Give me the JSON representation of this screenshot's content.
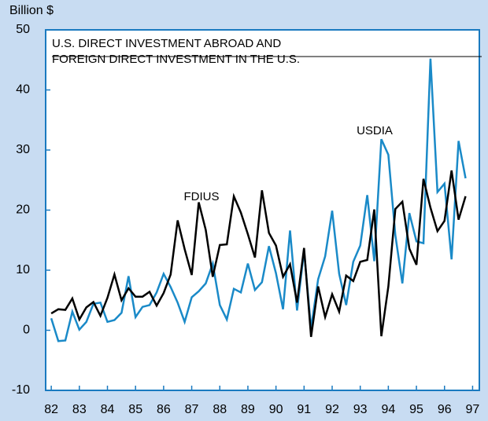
{
  "chart_data": {
    "type": "line",
    "title": [
      "U.S. DIRECT INVESTMENT ABROAD AND",
      "FOREIGN DIRECT INVESTMENT IN THE U.S."
    ],
    "ylabel": "Billion $",
    "x": [
      82,
      82.25,
      82.5,
      82.75,
      83,
      83.25,
      83.5,
      83.75,
      84,
      84.25,
      84.5,
      84.75,
      85,
      85.25,
      85.5,
      85.75,
      86,
      86.25,
      86.5,
      86.75,
      87,
      87.25,
      87.5,
      87.75,
      88,
      88.25,
      88.5,
      88.75,
      89,
      89.25,
      89.5,
      89.75,
      90,
      90.25,
      90.5,
      90.75,
      91,
      91.25,
      91.5,
      91.75,
      92,
      92.25,
      92.5,
      92.75,
      93,
      93.25,
      93.5,
      93.75,
      94,
      94.25,
      94.5,
      94.75,
      95,
      95.25,
      95.5,
      95.75,
      96,
      96.25,
      96.5,
      96.75
    ],
    "series": [
      {
        "name": "USDIA",
        "color": "#1a8ac8",
        "values": [
          2.0,
          -1.8,
          -1.7,
          3.1,
          0.1,
          1.4,
          4.4,
          4.6,
          1.4,
          1.7,
          2.9,
          9.0,
          2.2,
          3.9,
          4.2,
          6.3,
          9.4,
          7.2,
          4.6,
          1.4,
          5.5,
          6.5,
          7.8,
          11.1,
          4.2,
          1.8,
          6.9,
          6.3,
          11.1,
          6.7,
          8.0,
          14.0,
          9.5,
          3.5,
          16.6,
          3.3,
          13.2,
          0.3,
          8.5,
          12.3,
          19.9,
          9.4,
          4.2,
          11.4,
          14.1,
          22.5,
          11.5,
          31.8,
          29.2,
          15.8,
          7.8,
          19.5,
          14.8,
          14.5,
          45.2,
          23.0,
          24.4,
          11.8,
          31.5,
          25.3
        ]
      },
      {
        "name": "FDIUS",
        "color": "#000000",
        "values": [
          2.8,
          3.5,
          3.4,
          5.3,
          1.8,
          3.8,
          4.7,
          2.4,
          5.4,
          9.3,
          5.0,
          7.0,
          5.6,
          5.6,
          6.4,
          4.1,
          6.2,
          9.3,
          18.3,
          13.5,
          9.2,
          21.3,
          16.7,
          8.9,
          14.2,
          14.3,
          22.3,
          19.6,
          16.0,
          12.1,
          23.3,
          16.2,
          14.1,
          8.9,
          11.0,
          4.6,
          13.7,
          -1.1,
          7.3,
          2.2,
          6.0,
          3.1,
          9.1,
          8.2,
          11.4,
          11.7,
          20.1,
          -1.0,
          7.3,
          20.2,
          21.4,
          13.6,
          10.9,
          25.2,
          20.4,
          16.5,
          18.2,
          26.6,
          18.4,
          22.3
        ]
      }
    ],
    "xlim": [
      81.8,
      97.24
    ],
    "xticks": [
      82,
      83,
      84,
      85,
      86,
      87,
      88,
      89,
      90,
      91,
      92,
      93,
      94,
      95,
      96,
      97
    ],
    "ylim": [
      -10,
      50
    ],
    "yticks": [
      -10,
      0,
      10,
      20,
      30,
      40,
      50
    ]
  }
}
